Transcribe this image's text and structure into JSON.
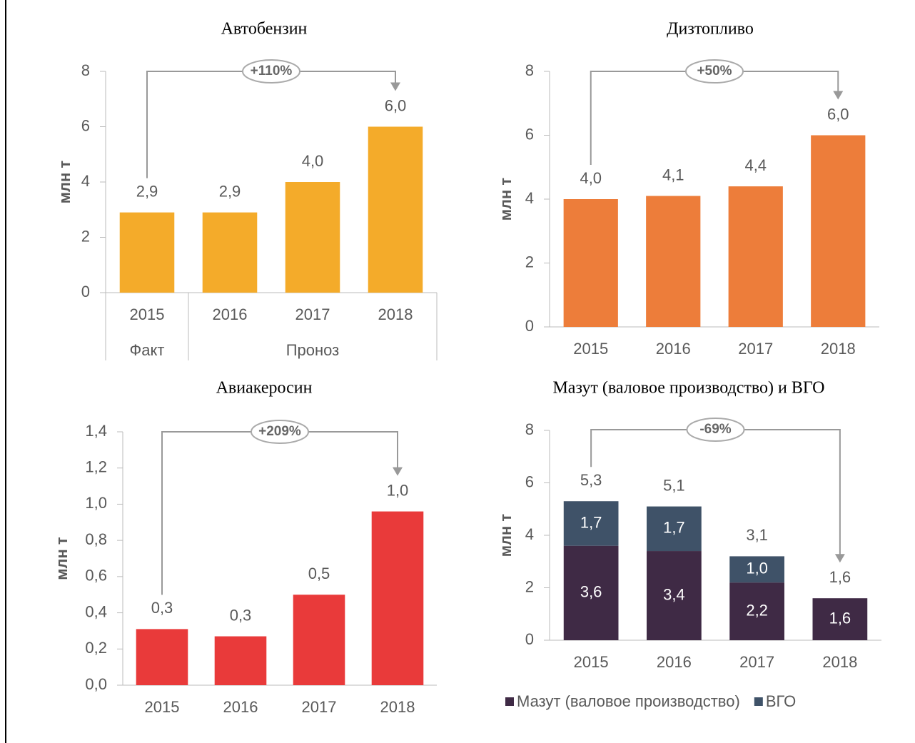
{
  "chart_data": [
    {
      "type": "bar",
      "title": "Автобензин",
      "ylabel": "млн т",
      "categories": [
        "2015",
        "2016",
        "2017",
        "2018"
      ],
      "groups": [
        "Факт",
        "Проноз"
      ],
      "values": [
        2.9,
        2.9,
        4.0,
        6.0
      ],
      "value_labels": [
        "2,9",
        "2,9",
        "4,0",
        "6,0"
      ],
      "color": "#f4ab2a",
      "ylim": [
        0,
        8
      ],
      "yticks": [
        0,
        2,
        4,
        6,
        8
      ],
      "annotation": "+110%"
    },
    {
      "type": "bar",
      "title": "Дизтопливо",
      "ylabel": "млн т",
      "categories": [
        "2015",
        "2016",
        "2017",
        "2018"
      ],
      "values": [
        4.0,
        4.1,
        4.4,
        6.0
      ],
      "value_labels": [
        "4,0",
        "4,1",
        "4,4",
        "6,0"
      ],
      "color": "#ed7d3a",
      "ylim": [
        0,
        8
      ],
      "yticks": [
        0,
        2,
        4,
        6,
        8
      ],
      "annotation": "+50%"
    },
    {
      "type": "bar",
      "title": "Авиакеросин",
      "ylabel": "млн т",
      "categories": [
        "2015",
        "2016",
        "2017",
        "2018"
      ],
      "values": [
        0.31,
        0.27,
        0.5,
        0.96
      ],
      "value_labels": [
        "0,3",
        "0,3",
        "0,5",
        "1,0"
      ],
      "color": "#e93a3a",
      "ylim": [
        0,
        1.4
      ],
      "yticks": [
        {
          "value": 0,
          "label": "0,0"
        },
        {
          "value": 0.2,
          "label": "0,2"
        },
        {
          "value": 0.4,
          "label": "0,4"
        },
        {
          "value": 0.6,
          "label": "0,6"
        },
        {
          "value": 0.8,
          "label": "0,8"
        },
        {
          "value": 1.0,
          "label": "1,0"
        },
        {
          "value": 1.2,
          "label": "1,2"
        },
        {
          "value": 1.4,
          "label": "1,4"
        }
      ],
      "annotation": "+209%"
    },
    {
      "type": "stacked_bar",
      "title": "Мазут (валовое производство) и ВГО",
      "ylabel": "млн т",
      "categories": [
        "2015",
        "2016",
        "2017",
        "2018"
      ],
      "series": [
        {
          "name": "Мазут (валовое производство)",
          "color": "#3f2a45",
          "values": [
            3.6,
            3.4,
            2.2,
            1.6
          ],
          "value_labels": [
            "3,6",
            "3,4",
            "2,2",
            "1,6"
          ]
        },
        {
          "name": "ВГО",
          "color": "#3f5268",
          "values": [
            1.7,
            1.7,
            1.0,
            null
          ],
          "value_labels": [
            "1,7",
            "1,7",
            "1,0",
            null
          ]
        }
      ],
      "total_labels": [
        "5,3",
        "5,1",
        "3,1",
        "1,6"
      ],
      "ylim": [
        0,
        8
      ],
      "yticks": [
        0,
        2,
        4,
        6,
        8
      ],
      "annotation": "-69%",
      "legend": "bottom"
    }
  ]
}
